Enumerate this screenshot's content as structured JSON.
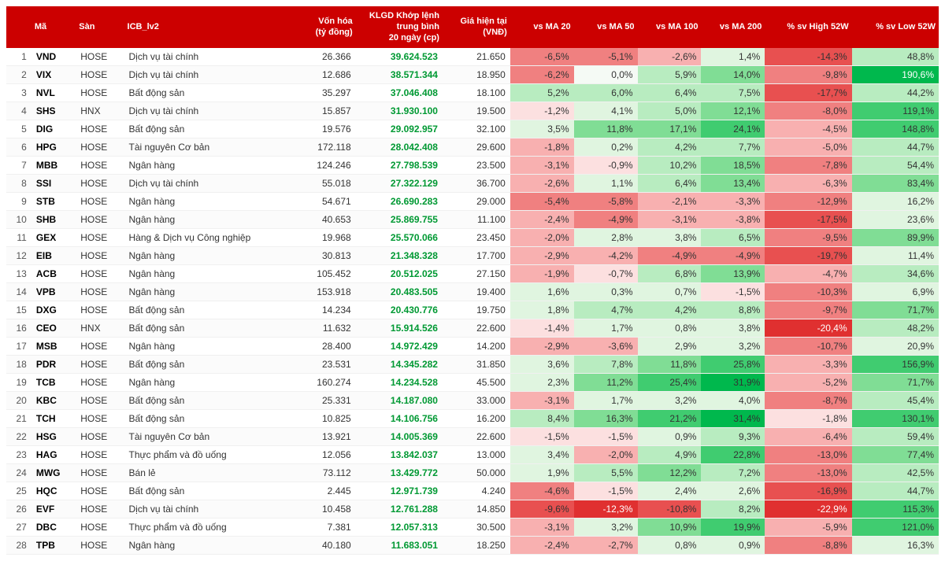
{
  "colors": {
    "header_bg": "#cc0000",
    "header_fg": "#ffffff",
    "volume_fg": "#009933",
    "heat": {
      "neg5": "#e03030",
      "neg4": "#e85050",
      "neg3": "#f08080",
      "neg2": "#f8b0b0",
      "neg1": "#fce0e0",
      "zero": "#f5faf5",
      "pos1": "#e0f5e0",
      "pos2": "#b8ecc0",
      "pos3": "#80dd95",
      "pos4": "#40cc70",
      "pos5": "#00b84d"
    },
    "heat_fg_dark": "#333333",
    "heat_fg_light": "#ffffff"
  },
  "columns": [
    {
      "key": "idx",
      "label": "",
      "cls": "idx"
    },
    {
      "key": "ma",
      "label": "Mã",
      "cls": "ma"
    },
    {
      "key": "san",
      "label": "Sàn",
      "cls": "san"
    },
    {
      "key": "icb",
      "label": "ICB_lv2",
      "cls": "icb"
    },
    {
      "key": "vh",
      "label": "Vốn hóa\n(tỷ đồng)",
      "cls": "vh"
    },
    {
      "key": "klgd",
      "label": "KLGD Khớp lệnh\ntrung bình\n20 ngày (cp)",
      "cls": "klgd"
    },
    {
      "key": "gia",
      "label": "Giá hiện tại\n(VNĐ)",
      "cls": "gia"
    },
    {
      "key": "ma20",
      "label": "vs MA 20",
      "cls": "pct"
    },
    {
      "key": "ma50",
      "label": "vs MA 50",
      "cls": "pct"
    },
    {
      "key": "ma100",
      "label": "vs MA 100",
      "cls": "pct"
    },
    {
      "key": "ma200",
      "label": "vs MA 200",
      "cls": "pct"
    },
    {
      "key": "hi52",
      "label": "% sv High 52W",
      "cls": "pctw"
    },
    {
      "key": "lo52",
      "label": "% sv Low 52W",
      "cls": "pctw"
    }
  ],
  "heat_scales": {
    "ma": {
      "min": -15,
      "max": 35
    },
    "hi52": {
      "min": -25,
      "max": 0
    },
    "lo52": {
      "min": 0,
      "max": 200
    }
  },
  "rows": [
    {
      "idx": 1,
      "ma": "VND",
      "san": "HOSE",
      "icb": "Dịch vụ tài chính",
      "vh": "26.366",
      "klgd": "39.624.523",
      "gia": "21.650",
      "ma20": -6.5,
      "ma50": -5.1,
      "ma100": -2.6,
      "ma200": 1.4,
      "hi52": -14.3,
      "lo52": 48.8
    },
    {
      "idx": 2,
      "ma": "VIX",
      "san": "HOSE",
      "icb": "Dịch vụ tài chính",
      "vh": "12.686",
      "klgd": "38.571.344",
      "gia": "18.950",
      "ma20": -6.2,
      "ma50": 0.0,
      "ma100": 5.9,
      "ma200": 14.0,
      "hi52": -9.8,
      "lo52": 190.6
    },
    {
      "idx": 3,
      "ma": "NVL",
      "san": "HOSE",
      "icb": "Bất động sản",
      "vh": "35.297",
      "klgd": "37.046.408",
      "gia": "18.100",
      "ma20": 5.2,
      "ma50": 6.0,
      "ma100": 6.4,
      "ma200": 7.5,
      "hi52": -17.7,
      "lo52": 44.2
    },
    {
      "idx": 4,
      "ma": "SHS",
      "san": "HNX",
      "icb": "Dịch vụ tài chính",
      "vh": "15.857",
      "klgd": "31.930.100",
      "gia": "19.500",
      "ma20": -1.2,
      "ma50": 4.1,
      "ma100": 5.0,
      "ma200": 12.1,
      "hi52": -8.0,
      "lo52": 119.1
    },
    {
      "idx": 5,
      "ma": "DIG",
      "san": "HOSE",
      "icb": "Bất động sản",
      "vh": "19.576",
      "klgd": "29.092.957",
      "gia": "32.100",
      "ma20": 3.5,
      "ma50": 11.8,
      "ma100": 17.1,
      "ma200": 24.1,
      "hi52": -4.5,
      "lo52": 148.8
    },
    {
      "idx": 6,
      "ma": "HPG",
      "san": "HOSE",
      "icb": "Tài nguyên Cơ bản",
      "vh": "172.118",
      "klgd": "28.042.408",
      "gia": "29.600",
      "ma20": -1.8,
      "ma50": 0.2,
      "ma100": 4.2,
      "ma200": 7.7,
      "hi52": -5.0,
      "lo52": 44.7
    },
    {
      "idx": 7,
      "ma": "MBB",
      "san": "HOSE",
      "icb": "Ngân hàng",
      "vh": "124.246",
      "klgd": "27.798.539",
      "gia": "23.500",
      "ma20": -3.1,
      "ma50": -0.9,
      "ma100": 10.2,
      "ma200": 18.5,
      "hi52": -7.8,
      "lo52": 54.4
    },
    {
      "idx": 8,
      "ma": "SSI",
      "san": "HOSE",
      "icb": "Dịch vụ tài chính",
      "vh": "55.018",
      "klgd": "27.322.129",
      "gia": "36.700",
      "ma20": -2.6,
      "ma50": 1.1,
      "ma100": 6.4,
      "ma200": 13.4,
      "hi52": -6.3,
      "lo52": 83.4
    },
    {
      "idx": 9,
      "ma": "STB",
      "san": "HOSE",
      "icb": "Ngân hàng",
      "vh": "54.671",
      "klgd": "26.690.283",
      "gia": "29.000",
      "ma20": -5.4,
      "ma50": -5.8,
      "ma100": -2.1,
      "ma200": -3.3,
      "hi52": -12.9,
      "lo52": 16.2
    },
    {
      "idx": 10,
      "ma": "SHB",
      "san": "HOSE",
      "icb": "Ngân hàng",
      "vh": "40.653",
      "klgd": "25.869.755",
      "gia": "11.100",
      "ma20": -2.4,
      "ma50": -4.9,
      "ma100": -3.1,
      "ma200": -3.8,
      "hi52": -17.5,
      "lo52": 23.6
    },
    {
      "idx": 11,
      "ma": "GEX",
      "san": "HOSE",
      "icb": "Hàng & Dịch vụ Công nghiệp",
      "vh": "19.968",
      "klgd": "25.570.066",
      "gia": "23.450",
      "ma20": -2.0,
      "ma50": 2.8,
      "ma100": 3.8,
      "ma200": 6.5,
      "hi52": -9.5,
      "lo52": 89.9
    },
    {
      "idx": 12,
      "ma": "EIB",
      "san": "HOSE",
      "icb": "Ngân hàng",
      "vh": "30.813",
      "klgd": "21.348.328",
      "gia": "17.700",
      "ma20": -2.9,
      "ma50": -4.2,
      "ma100": -4.9,
      "ma200": -4.9,
      "hi52": -19.7,
      "lo52": 11.4
    },
    {
      "idx": 13,
      "ma": "ACB",
      "san": "HOSE",
      "icb": "Ngân hàng",
      "vh": "105.452",
      "klgd": "20.512.025",
      "gia": "27.150",
      "ma20": -1.9,
      "ma50": -0.7,
      "ma100": 6.8,
      "ma200": 13.9,
      "hi52": -4.7,
      "lo52": 34.6
    },
    {
      "idx": 14,
      "ma": "VPB",
      "san": "HOSE",
      "icb": "Ngân hàng",
      "vh": "153.918",
      "klgd": "20.483.505",
      "gia": "19.400",
      "ma20": 1.6,
      "ma50": 0.3,
      "ma100": 0.7,
      "ma200": -1.5,
      "hi52": -10.3,
      "lo52": 6.9
    },
    {
      "idx": 15,
      "ma": "DXG",
      "san": "HOSE",
      "icb": "Bất động sản",
      "vh": "14.234",
      "klgd": "20.430.776",
      "gia": "19.750",
      "ma20": 1.8,
      "ma50": 4.7,
      "ma100": 4.2,
      "ma200": 8.8,
      "hi52": -9.7,
      "lo52": 71.7
    },
    {
      "idx": 16,
      "ma": "CEO",
      "san": "HNX",
      "icb": "Bất động sản",
      "vh": "11.632",
      "klgd": "15.914.526",
      "gia": "22.600",
      "ma20": -1.4,
      "ma50": 1.7,
      "ma100": 0.8,
      "ma200": 3.8,
      "hi52": -20.4,
      "lo52": 48.2
    },
    {
      "idx": 17,
      "ma": "MSB",
      "san": "HOSE",
      "icb": "Ngân hàng",
      "vh": "28.400",
      "klgd": "14.972.429",
      "gia": "14.200",
      "ma20": -2.9,
      "ma50": -3.6,
      "ma100": 2.9,
      "ma200": 3.2,
      "hi52": -10.7,
      "lo52": 20.9
    },
    {
      "idx": 18,
      "ma": "PDR",
      "san": "HOSE",
      "icb": "Bất động sản",
      "vh": "23.531",
      "klgd": "14.345.282",
      "gia": "31.850",
      "ma20": 3.6,
      "ma50": 7.8,
      "ma100": 11.8,
      "ma200": 25.8,
      "hi52": -3.3,
      "lo52": 156.9
    },
    {
      "idx": 19,
      "ma": "TCB",
      "san": "HOSE",
      "icb": "Ngân hàng",
      "vh": "160.274",
      "klgd": "14.234.528",
      "gia": "45.500",
      "ma20": 2.3,
      "ma50": 11.2,
      "ma100": 25.4,
      "ma200": 31.9,
      "hi52": -5.2,
      "lo52": 71.7
    },
    {
      "idx": 20,
      "ma": "KBC",
      "san": "HOSE",
      "icb": "Bất động sản",
      "vh": "25.331",
      "klgd": "14.187.080",
      "gia": "33.000",
      "ma20": -3.1,
      "ma50": 1.7,
      "ma100": 3.2,
      "ma200": 4.0,
      "hi52": -8.7,
      "lo52": 45.4
    },
    {
      "idx": 21,
      "ma": "TCH",
      "san": "HOSE",
      "icb": "Bất động sản",
      "vh": "10.825",
      "klgd": "14.106.756",
      "gia": "16.200",
      "ma20": 8.4,
      "ma50": 16.3,
      "ma100": 21.2,
      "ma200": 31.4,
      "hi52": -1.8,
      "lo52": 130.1
    },
    {
      "idx": 22,
      "ma": "HSG",
      "san": "HOSE",
      "icb": "Tài nguyên Cơ bản",
      "vh": "13.921",
      "klgd": "14.005.369",
      "gia": "22.600",
      "ma20": -1.5,
      "ma50": -1.5,
      "ma100": 0.9,
      "ma200": 9.3,
      "hi52": -6.4,
      "lo52": 59.4
    },
    {
      "idx": 23,
      "ma": "HAG",
      "san": "HOSE",
      "icb": "Thực phẩm và đồ uống",
      "vh": "12.056",
      "klgd": "13.842.037",
      "gia": "13.000",
      "ma20": 3.4,
      "ma50": -2.0,
      "ma100": 4.9,
      "ma200": 22.8,
      "hi52": -13.0,
      "lo52": 77.4
    },
    {
      "idx": 24,
      "ma": "MWG",
      "san": "HOSE",
      "icb": "Bán lẻ",
      "vh": "73.112",
      "klgd": "13.429.772",
      "gia": "50.000",
      "ma20": 1.9,
      "ma50": 5.5,
      "ma100": 12.2,
      "ma200": 7.2,
      "hi52": -13.0,
      "lo52": 42.5
    },
    {
      "idx": 25,
      "ma": "HQC",
      "san": "HOSE",
      "icb": "Bất động sản",
      "vh": "2.445",
      "klgd": "12.971.739",
      "gia": "4.240",
      "ma20": -4.6,
      "ma50": -1.5,
      "ma100": 2.4,
      "ma200": 2.6,
      "hi52": -16.9,
      "lo52": 44.7
    },
    {
      "idx": 26,
      "ma": "EVF",
      "san": "HOSE",
      "icb": "Dịch vụ tài chính",
      "vh": "10.458",
      "klgd": "12.761.288",
      "gia": "14.850",
      "ma20": -9.6,
      "ma50": -12.3,
      "ma100": -10.8,
      "ma200": 8.2,
      "hi52": -22.9,
      "lo52": 115.3
    },
    {
      "idx": 27,
      "ma": "DBC",
      "san": "HOSE",
      "icb": "Thực phẩm và đồ uống",
      "vh": "7.381",
      "klgd": "12.057.313",
      "gia": "30.500",
      "ma20": -3.1,
      "ma50": 3.2,
      "ma100": 10.9,
      "ma200": 19.9,
      "hi52": -5.9,
      "lo52": 121.0
    },
    {
      "idx": 28,
      "ma": "TPB",
      "san": "HOSE",
      "icb": "Ngân hàng",
      "vh": "40.180",
      "klgd": "11.683.051",
      "gia": "18.250",
      "ma20": -2.4,
      "ma50": -2.7,
      "ma100": 0.8,
      "ma200": 0.9,
      "hi52": -8.8,
      "lo52": 16.3
    }
  ]
}
